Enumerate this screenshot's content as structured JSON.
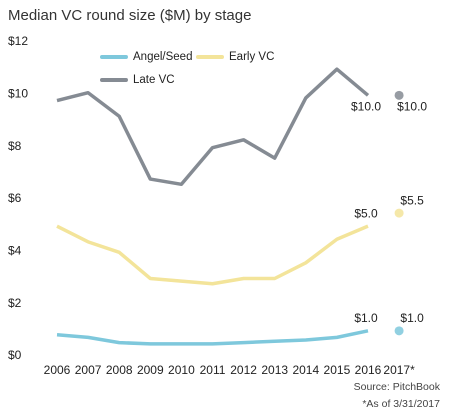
{
  "chart_data": {
    "type": "line",
    "title": "Median VC round size ($M) by stage",
    "categories": [
      "2006",
      "2007",
      "2008",
      "2009",
      "2010",
      "2011",
      "2012",
      "2013",
      "2014",
      "2015",
      "2016",
      "2017*"
    ],
    "separate_last_point": true,
    "series": [
      {
        "name": "Angel/Seed",
        "color": "#7ec8dc",
        "values": [
          0.85,
          0.75,
          0.55,
          0.5,
          0.5,
          0.5,
          0.55,
          0.6,
          0.65,
          0.75,
          1.0,
          1.0
        ],
        "value_labels": [
          null,
          null,
          null,
          null,
          null,
          null,
          null,
          null,
          null,
          null,
          "$1.0",
          "$1.0"
        ]
      },
      {
        "name": "Early VC",
        "color": "#f3e49a",
        "values": [
          5.0,
          4.4,
          4.0,
          3.0,
          2.9,
          2.8,
          3.0,
          3.0,
          3.6,
          4.5,
          5.0,
          5.5
        ],
        "value_labels": [
          null,
          null,
          null,
          null,
          null,
          null,
          null,
          null,
          null,
          null,
          "$5.0",
          "$5.5"
        ]
      },
      {
        "name": "Late VC",
        "color": "#858b93",
        "values": [
          9.8,
          10.1,
          9.2,
          6.8,
          6.6,
          8.0,
          8.3,
          7.6,
          9.9,
          11.0,
          10.0,
          10.0
        ],
        "value_labels": [
          null,
          null,
          null,
          null,
          null,
          null,
          null,
          null,
          null,
          null,
          "$10.0",
          "$10.0"
        ]
      }
    ],
    "ylim": [
      0,
      12
    ],
    "yticks": [
      {
        "value": 0,
        "label": "$0"
      },
      {
        "value": 2,
        "label": "$2"
      },
      {
        "value": 4,
        "label": "$4"
      },
      {
        "value": 6,
        "label": "$6"
      },
      {
        "value": 8,
        "label": "$8"
      },
      {
        "value": 10,
        "label": "$10"
      },
      {
        "value": 12,
        "label": "$12"
      }
    ],
    "grid": false,
    "annotations": [
      "Source: PitchBook",
      "*As of 3/31/2017"
    ]
  }
}
